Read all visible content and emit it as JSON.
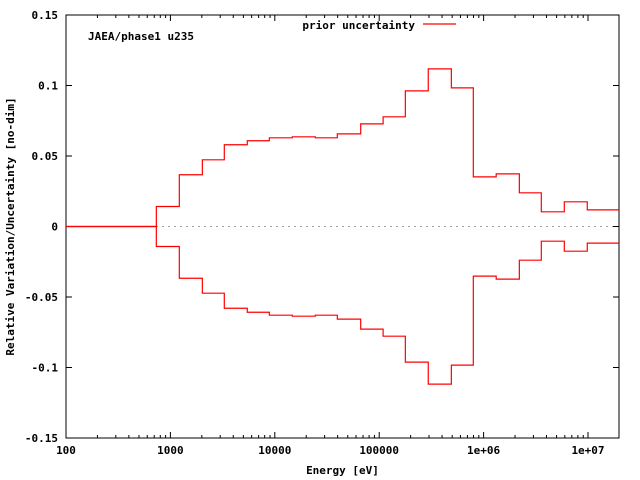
{
  "chart_data": {
    "type": "line",
    "style": "step",
    "xlabel": "Energy [eV]",
    "ylabel": "Relative Variation/Uncertainty [no-dim]",
    "annotation": "JAEA/phase1 u235",
    "xscale": "log",
    "xlim": [
      100,
      19800000
    ],
    "ylim": [
      -0.15,
      0.15
    ],
    "x_ticks": [
      100,
      1000,
      10000,
      100000,
      1000000,
      10000000
    ],
    "x_tick_labels": [
      "100",
      "1000",
      "10000",
      "100000",
      "1e+06",
      "1e+07"
    ],
    "y_ticks": [
      0.15,
      0.1,
      0.05,
      0,
      -0.05,
      -0.1,
      -0.15
    ],
    "y_tick_labels": [
      "0.15",
      "0.1",
      "0.05",
      "0",
      "-0.05",
      "-0.1",
      "-0.15"
    ],
    "legend_position": "top-center",
    "zero_line": true,
    "bin_edges": [
      100,
      733,
      1217,
      2023,
      3283,
      5450,
      8860,
      14700,
      24400,
      39700,
      66500,
      109000,
      178000,
      295000,
      491000,
      797000,
      1320000,
      2200000,
      3570000,
      5930000,
      9840000,
      19800000
    ],
    "series": [
      {
        "name": "prior uncertainty",
        "color": "#ff0000",
        "values": [
          0,
          0.0142,
          0.0367,
          0.0473,
          0.058,
          0.0608,
          0.0629,
          0.0636,
          0.0629,
          0.0657,
          0.0728,
          0.0778,
          0.0962,
          0.1118,
          0.0983,
          0.0352,
          0.0373,
          0.0239,
          0.0104,
          0.0175,
          0.0118
        ],
        "mirrored": true
      }
    ]
  }
}
